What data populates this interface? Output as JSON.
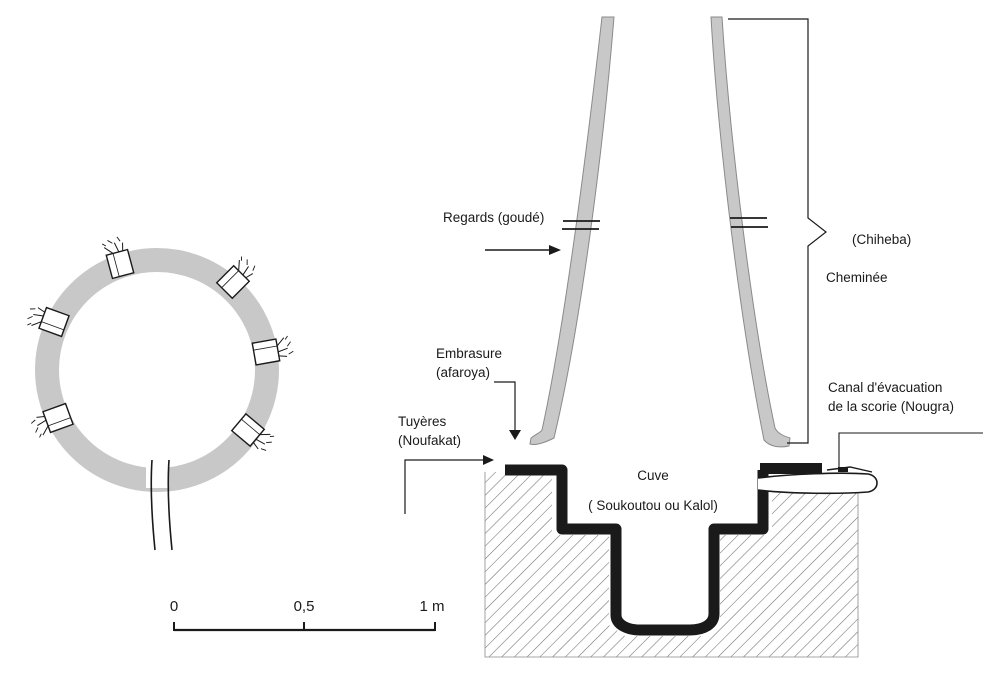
{
  "colors": {
    "wall": "#c8c8c8",
    "wall_outline": "#8a8a8a",
    "ink": "#1a1a1a",
    "hatch": "#6e6e6e",
    "background": "#ffffff"
  },
  "labels": {
    "regards": "Regards (goudé)",
    "chiheba": "(Chiheba)",
    "cheminee": "Cheminée",
    "embrasure_line1": "Embrasure",
    "embrasure_line2": "(afaroya)",
    "tuyeres_line1": "Tuyères",
    "tuyeres_line2": "(Noufakat)",
    "canal_line1": "Canal d'évacuation",
    "canal_line2": "de la scorie (Nougra)",
    "cuve_line1": "Cuve",
    "cuve_line2": "( Soukoutou ou Kalol)"
  },
  "scale_bar": {
    "ticks": [
      "0",
      "0,5",
      "1 m"
    ]
  },
  "icons": {
    "tuyere": "tuyere-icon",
    "arrow": "arrow-icon",
    "brace": "curly-brace-icon"
  }
}
